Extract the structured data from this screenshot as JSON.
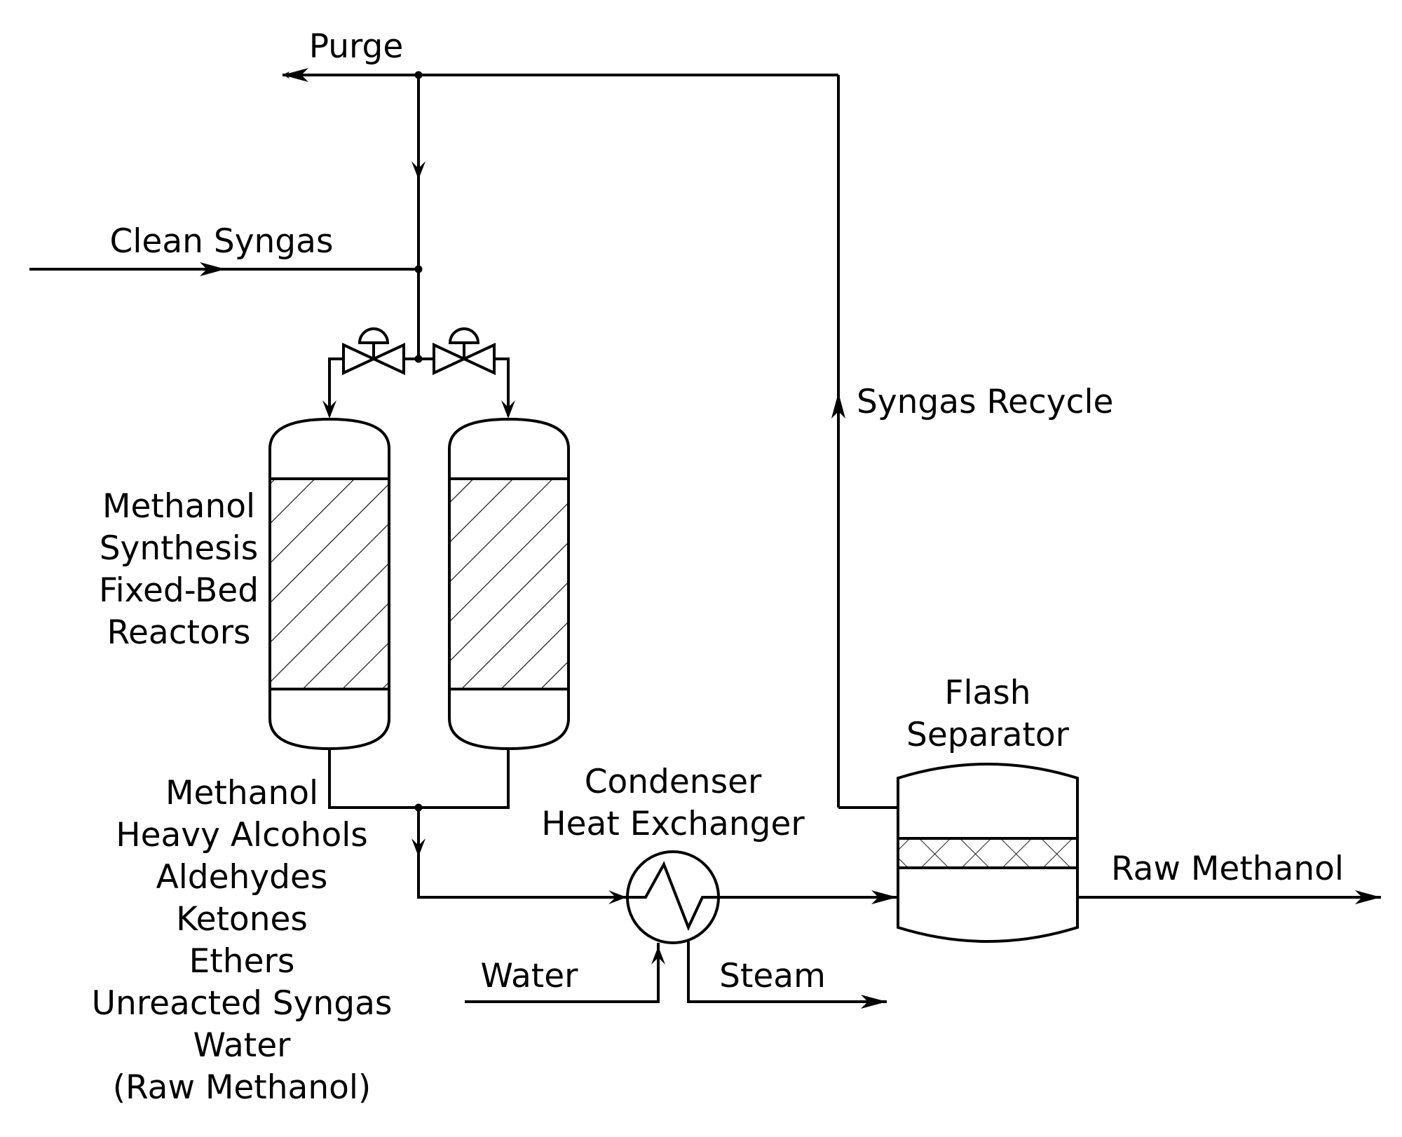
{
  "diagram": {
    "labels": {
      "purge": "Purge",
      "clean_syngas": "Clean Syngas",
      "syngas_recycle": "Syngas Recycle",
      "reactors": [
        "Methanol",
        "Synthesis",
        "Fixed-Bed",
        "Reactors"
      ],
      "reactor_outlet": [
        "Methanol",
        "Heavy Alcohols",
        "Aldehydes",
        "Ketones",
        "Ethers",
        "Unreacted Syngas",
        "Water",
        "(Raw Methanol)"
      ],
      "condenser": [
        "Condenser",
        "Heat Exchanger"
      ],
      "flash_separator": [
        "Flash",
        "Separator"
      ],
      "raw_methanol": "Raw Methanol",
      "water": "Water",
      "steam": "Steam"
    },
    "colors": {
      "line": "#000000",
      "background": "#ffffff"
    }
  }
}
